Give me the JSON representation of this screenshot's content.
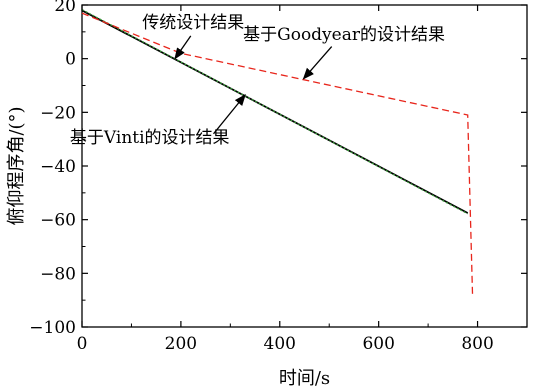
{
  "chart_data": {
    "type": "line",
    "title": "",
    "xlabel": "时间/s",
    "ylabel": "俯仰程序角/(°)",
    "xlim": [
      0,
      900
    ],
    "ylim": [
      -100,
      20
    ],
    "xticks": [
      0,
      200,
      400,
      600,
      800
    ],
    "yticks": [
      20,
      0,
      -20,
      -40,
      -60,
      -80,
      -100
    ],
    "grid": false,
    "series": [
      {
        "name": "传统设计结果",
        "color": "#000000",
        "dash": "solid",
        "x": [
          0,
          780
        ],
        "y": [
          18,
          -57.5
        ]
      },
      {
        "name": "基于Vinti的设计结果",
        "color": "#3a9a3a",
        "dash": "dotted",
        "x": [
          0,
          780
        ],
        "y": [
          18.3,
          -57.8
        ]
      },
      {
        "name": "基于Goodyear的设计结果",
        "color": "#e8261c",
        "dash": "dashed",
        "x": [
          0,
          100,
          200,
          780,
          790
        ],
        "y": [
          17,
          9.5,
          2,
          -21,
          -89
        ]
      }
    ],
    "annotations": [
      {
        "text": "传统设计结果",
        "text_x": 225,
        "text_y": 11.5,
        "arrow_from": [
          220,
          8.5
        ],
        "arrow_to": [
          188,
          0
        ]
      },
      {
        "text": "基于Goodyear的设计结果",
        "text_x": 530,
        "text_y": 7,
        "arrow_from": [
          505,
          4.5
        ],
        "arrow_to": [
          448,
          -7.5
        ]
      },
      {
        "text": "基于Vinti的设计结果",
        "text_x": 137,
        "text_y": -31.5,
        "arrow_from": [
          266,
          -28
        ],
        "arrow_to": [
          330,
          -13.5
        ]
      }
    ]
  }
}
